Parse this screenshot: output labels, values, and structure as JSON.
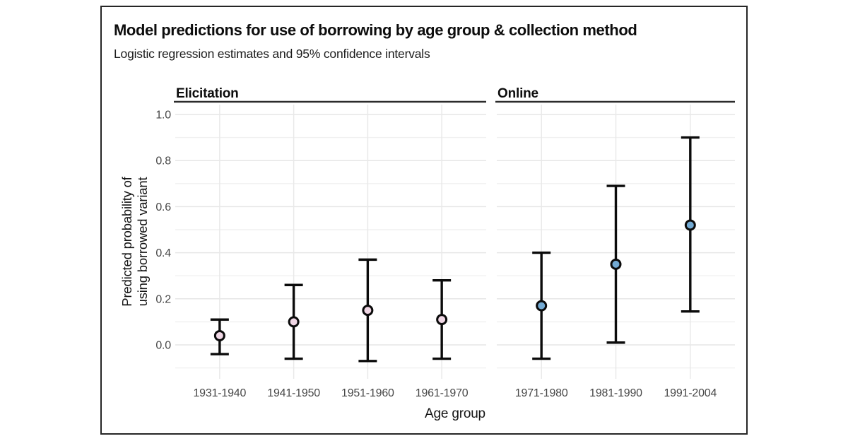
{
  "chart_data": {
    "type": "scatter",
    "subtype": "pointrange-faceted",
    "title": "Model predictions for use of borrowing by age group & collection method",
    "subtitle": "Logistic regression estimates and 95% confidence intervals",
    "xlabel": "Age group",
    "ylabel": "Predicted probability of using borrowed variant",
    "ylabel_lines": [
      "Predicted probability of",
      "using borrowed variant"
    ],
    "y_ticks": [
      0.0,
      0.2,
      0.4,
      0.6,
      0.8,
      1.0
    ],
    "y_tick_labels": [
      "0.0",
      "0.2",
      "0.4",
      "0.6",
      "0.8",
      "1.0"
    ],
    "y_minor_gridlines": [
      -0.1,
      0.1,
      0.3,
      0.5,
      0.7,
      0.9
    ],
    "ylim": [
      -0.16,
      1.04
    ],
    "grid": "horizontal major+minor, vertical at categories",
    "legend": "none",
    "facets": [
      {
        "label": "Elicitation",
        "point_color": "#f0d7e5",
        "categories": [
          "1931-1940",
          "1941-1950",
          "1951-1960",
          "1961-1970"
        ],
        "points": [
          {
            "x": "1931-1940",
            "estimate": 0.04,
            "ci_low": -0.04,
            "ci_high": 0.11
          },
          {
            "x": "1941-1950",
            "estimate": 0.1,
            "ci_low": -0.06,
            "ci_high": 0.26
          },
          {
            "x": "1951-1960",
            "estimate": 0.15,
            "ci_low": -0.07,
            "ci_high": 0.37
          },
          {
            "x": "1961-1970",
            "estimate": 0.11,
            "ci_low": -0.06,
            "ci_high": 0.28
          }
        ]
      },
      {
        "label": "Online",
        "point_color": "#73aad3",
        "categories": [
          "1971-1980",
          "1981-1990",
          "1991-2004"
        ],
        "points": [
          {
            "x": "1971-1980",
            "estimate": 0.17,
            "ci_low": -0.06,
            "ci_high": 0.4
          },
          {
            "x": "1981-1990",
            "estimate": 0.35,
            "ci_low": 0.01,
            "ci_high": 0.69
          },
          {
            "x": "1991-2004",
            "estimate": 0.52,
            "ci_low": 0.145,
            "ci_high": 0.9
          }
        ]
      }
    ],
    "colors": {
      "interval_stroke": "#0b0b0b",
      "elicitation_point": "#f0d7e5",
      "online_point": "#73aad3"
    }
  }
}
